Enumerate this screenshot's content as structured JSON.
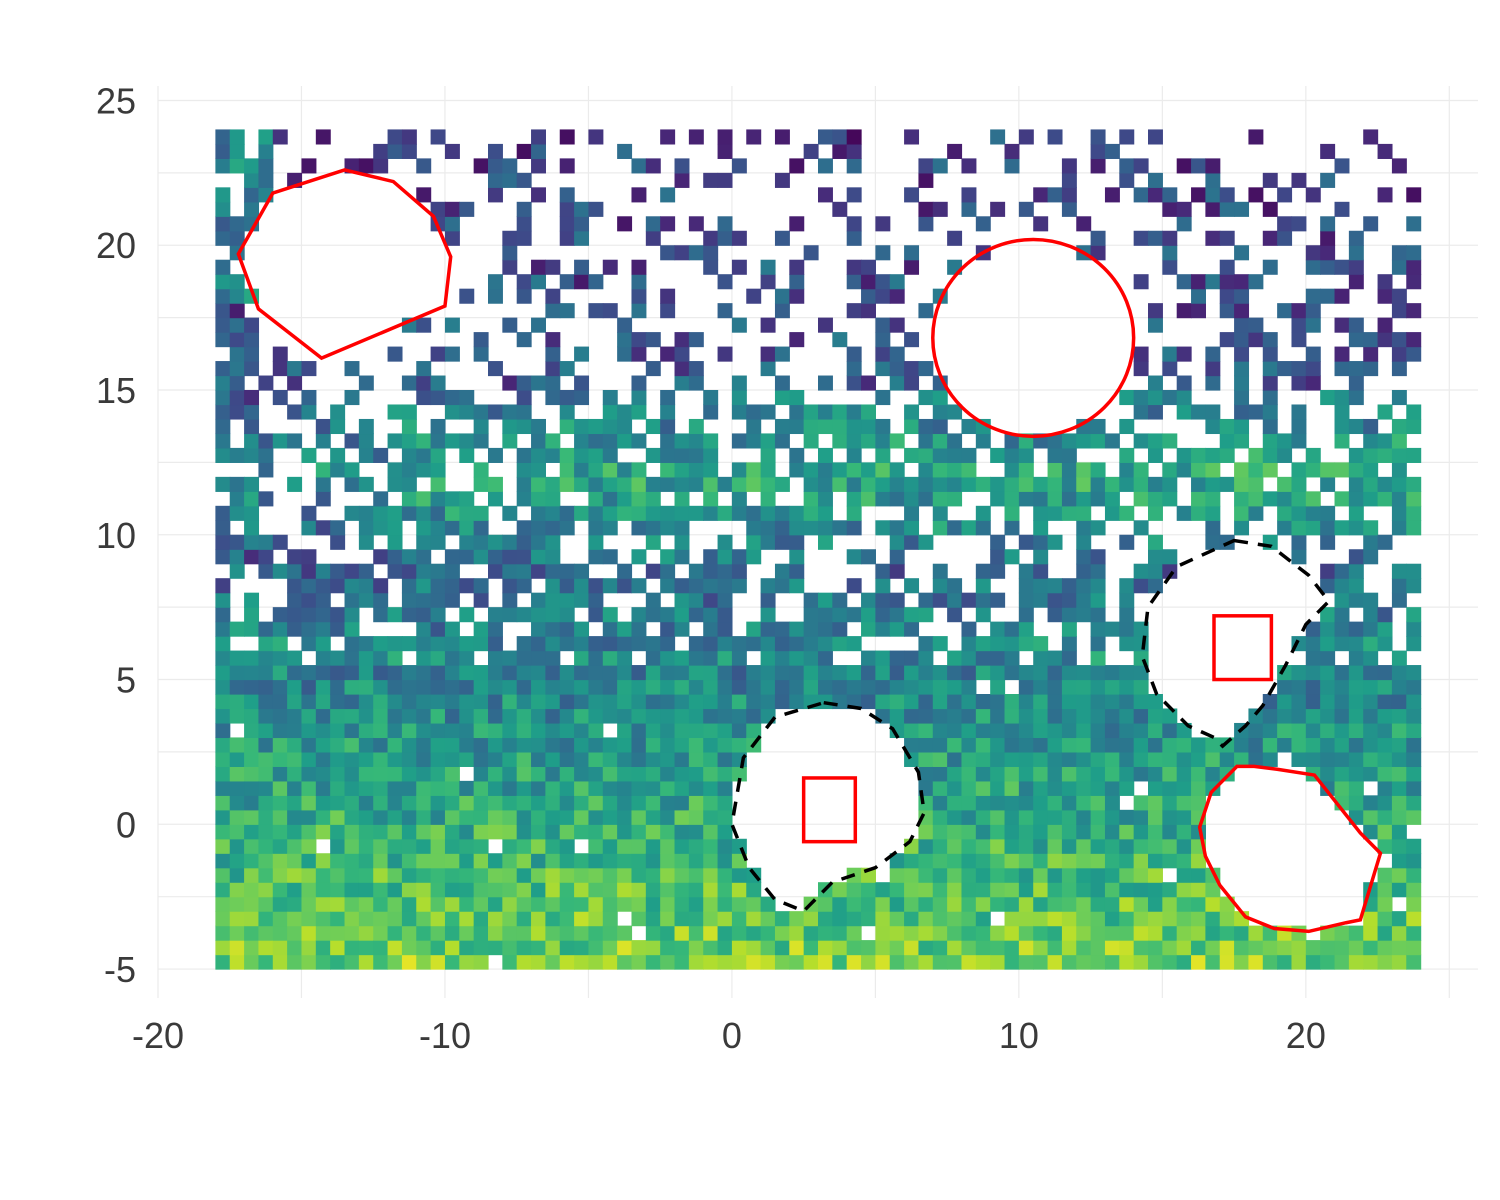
{
  "chart_data": {
    "type": "heatmap",
    "title": "",
    "xlabel": "",
    "ylabel": "",
    "xlim": [
      -20,
      26
    ],
    "ylim": [
      -6,
      25.5
    ],
    "x_ticks": [
      -20,
      -10,
      0,
      10,
      20
    ],
    "y_ticks": [
      -5,
      0,
      5,
      10,
      15,
      20,
      25
    ],
    "x_tick_labels": [
      "-20",
      "-10",
      "0",
      "10",
      "20"
    ],
    "y_tick_labels": [
      "-5",
      "0",
      "5",
      "10",
      "15",
      "20",
      "25"
    ],
    "grid": true,
    "legend": "none",
    "colormap": "viridis",
    "cell_size": 0.5,
    "grid_extent": {
      "x": [
        -18,
        24
      ],
      "y": [
        -5,
        24
      ]
    },
    "colors": {
      "obstacle": "#ff0000",
      "dashed_region": "#000000",
      "background": "#ffffff"
    },
    "obstacles_solid": [
      {
        "shape": "polygon",
        "points": [
          [
            -13.5,
            22.6
          ],
          [
            -11.8,
            22.2
          ],
          [
            -10.4,
            21.0
          ],
          [
            -9.8,
            19.6
          ],
          [
            -10.0,
            17.9
          ],
          [
            -14.3,
            16.1
          ],
          [
            -16.5,
            17.8
          ],
          [
            -17.2,
            19.7
          ],
          [
            -16.0,
            21.8
          ]
        ]
      },
      {
        "shape": "ellipse",
        "center": [
          10.5,
          16.8
        ],
        "rx": 3.5,
        "ry": 3.4
      },
      {
        "shape": "polygon",
        "points": [
          [
            18.2,
            2.0
          ],
          [
            19.0,
            1.9
          ],
          [
            20.3,
            1.7
          ],
          [
            21.9,
            -0.3
          ],
          [
            22.6,
            -1.0
          ],
          [
            21.9,
            -3.3
          ],
          [
            21.4,
            -3.4
          ],
          [
            20.1,
            -3.7
          ],
          [
            18.9,
            -3.6
          ],
          [
            17.9,
            -3.2
          ],
          [
            17.0,
            -2.1
          ],
          [
            16.5,
            -1.1
          ],
          [
            16.3,
            -0.1
          ],
          [
            16.7,
            1.1
          ],
          [
            17.6,
            2.0
          ]
        ]
      },
      {
        "shape": "rect",
        "x": [
          2.5,
          4.3
        ],
        "y": [
          -0.6,
          1.6
        ]
      },
      {
        "shape": "rect",
        "x": [
          16.8,
          18.8
        ],
        "y": [
          5.0,
          7.2
        ]
      }
    ],
    "regions_dashed": [
      {
        "shape": "polygon",
        "points": [
          [
            3.2,
            4.2
          ],
          [
            4.5,
            4.0
          ],
          [
            5.6,
            3.3
          ],
          [
            6.5,
            1.8
          ],
          [
            6.7,
            0.4
          ],
          [
            6.2,
            -0.6
          ],
          [
            5.0,
            -1.5
          ],
          [
            3.5,
            -2.0
          ],
          [
            2.5,
            -3.0
          ],
          [
            1.5,
            -2.6
          ],
          [
            0.6,
            -1.5
          ],
          [
            0.0,
            0.0
          ],
          [
            0.4,
            2.3
          ],
          [
            1.5,
            3.7
          ]
        ]
      },
      {
        "shape": "polygon",
        "points": [
          [
            17.5,
            9.8
          ],
          [
            18.8,
            9.6
          ],
          [
            20.1,
            8.6
          ],
          [
            20.8,
            7.7
          ],
          [
            20.0,
            6.9
          ],
          [
            19.3,
            5.5
          ],
          [
            18.5,
            4.1
          ],
          [
            17.9,
            3.4
          ],
          [
            17.1,
            2.7
          ],
          [
            16.8,
            3.0
          ],
          [
            15.9,
            3.4
          ],
          [
            14.8,
            4.5
          ],
          [
            14.3,
            5.8
          ],
          [
            14.5,
            7.5
          ],
          [
            15.5,
            8.9
          ]
        ]
      }
    ]
  }
}
